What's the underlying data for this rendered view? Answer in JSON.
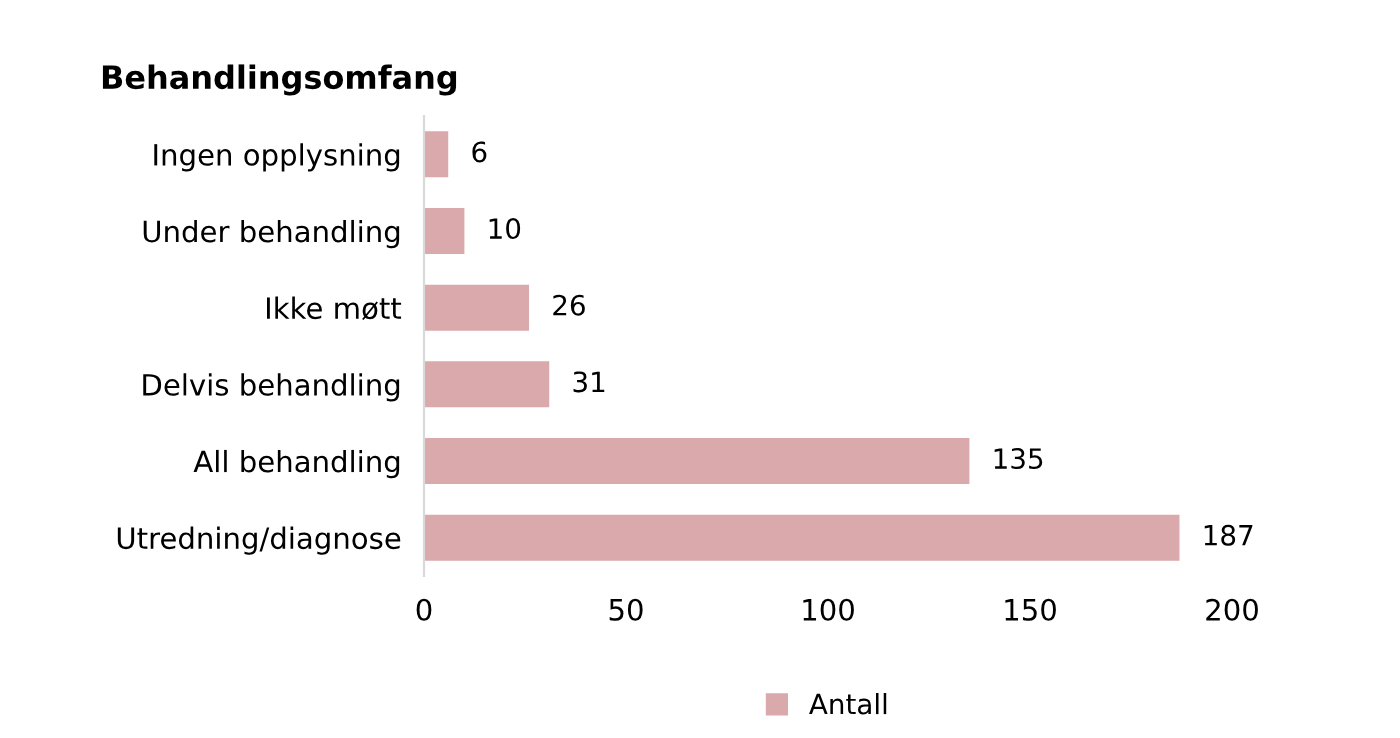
{
  "chart_data": {
    "type": "bar",
    "orientation": "horizontal",
    "title": "Behandlingsomfang",
    "categories": [
      "Ingen opplysning",
      "Under behandling",
      "Ikke møtt",
      "Delvis behandling",
      "All behandling",
      "Utredning/diagnose"
    ],
    "series": [
      {
        "name": "Antall",
        "color": "#d9a9ab",
        "values": [
          6,
          10,
          26,
          31,
          135,
          187
        ]
      }
    ],
    "xlim": [
      0,
      200
    ],
    "xticks": [
      0,
      50,
      100,
      150,
      200
    ],
    "grid": false,
    "legend": "bottom",
    "data_labels": true
  }
}
